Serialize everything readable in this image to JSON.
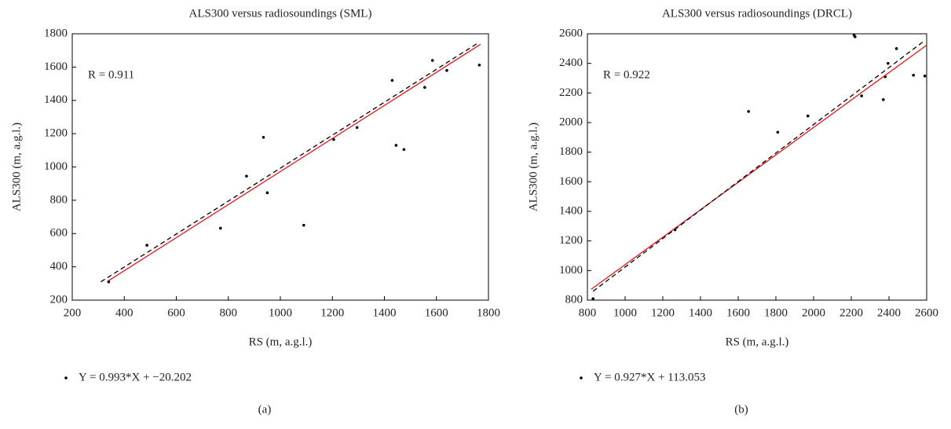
{
  "chart_data": [
    {
      "type": "scatter",
      "title": "ALS300 versus radiosoundings (SML)",
      "xlabel": "RS (m, a.g.l.)",
      "ylabel": "ALS300 (m, a.g.l.)",
      "annotation": "R = 0.911",
      "panel_label": "(a)",
      "xlim": [
        200,
        1800
      ],
      "ylim": [
        200,
        1800
      ],
      "xticks": [
        200,
        400,
        600,
        800,
        1000,
        1200,
        1400,
        1600,
        1800
      ],
      "yticks": [
        200,
        400,
        600,
        800,
        1000,
        1200,
        1400,
        1600,
        1800
      ],
      "series": [
        {
          "name": "Y = 0.993*X + −20.202",
          "color": "#000000",
          "style": "points",
          "x": [
            340,
            487,
            770,
            870,
            935,
            950,
            1090,
            1205,
            1295,
            1430,
            1445,
            1475,
            1555,
            1585,
            1640,
            1765
          ],
          "values": [
            310,
            530,
            632,
            945,
            1178,
            845,
            650,
            1165,
            1237,
            1520,
            1130,
            1105,
            1478,
            1640,
            1580,
            1612
          ]
        },
        {
          "color": "#e8141c",
          "style": "solid",
          "x": [
            340,
            1770
          ],
          "values": [
            317,
            1737
          ]
        },
        {
          "color": "#000000",
          "style": "dashed",
          "x": [
            310,
            1760
          ],
          "values": [
            310,
            1745
          ]
        }
      ]
    },
    {
      "type": "scatter",
      "title": "ALS300 versus radiosoundings (DRCL)",
      "xlabel": "RS (m, a.g.l.)",
      "ylabel": "ALS300 (m, a.g.l.)",
      "annotation": "R = 0.922",
      "panel_label": "(b)",
      "xlim": [
        800,
        2600
      ],
      "ylim": [
        800,
        2600
      ],
      "xticks": [
        800,
        1000,
        1200,
        1400,
        1600,
        1800,
        2000,
        2200,
        2400,
        2600
      ],
      "yticks": [
        800,
        1000,
        1200,
        1400,
        1600,
        1800,
        2000,
        2200,
        2400,
        2600
      ],
      "series": [
        {
          "name": "Y = 0.927*X + 113.053",
          "color": "#000000",
          "style": "points",
          "x": [
            830,
            1265,
            1655,
            1810,
            1970,
            2215,
            2220,
            2255,
            2370,
            2380,
            2395,
            2440,
            2530,
            2590
          ],
          "values": [
            810,
            1275,
            2075,
            1935,
            2045,
            2590,
            2580,
            2180,
            2155,
            2310,
            2400,
            2500,
            2320,
            2315
          ]
        },
        {
          "color": "#e8141c",
          "style": "solid",
          "x": [
            820,
            2600
          ],
          "values": [
            873,
            2523
          ]
        },
        {
          "color": "#000000",
          "style": "dashed",
          "x": [
            830,
            2580
          ],
          "values": [
            860,
            2545
          ]
        }
      ]
    }
  ]
}
